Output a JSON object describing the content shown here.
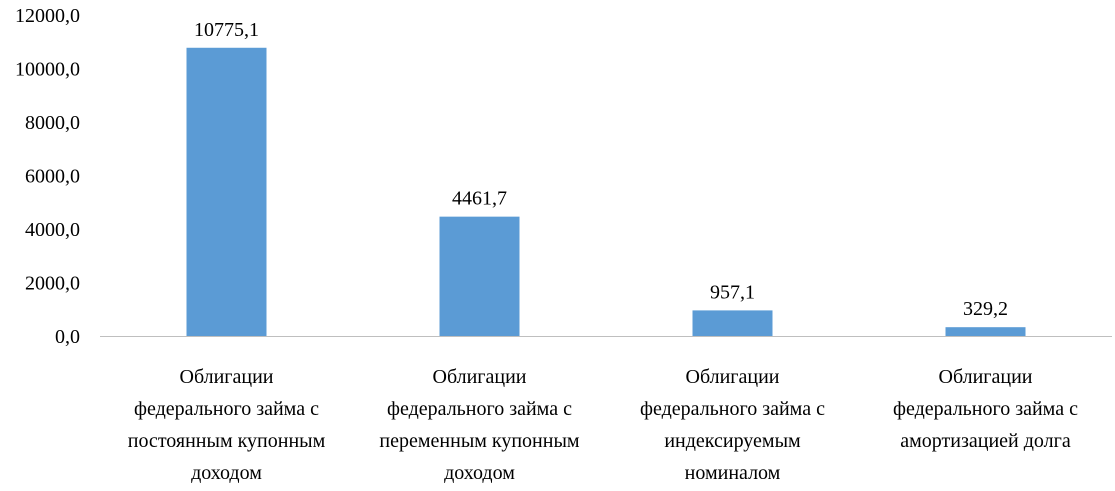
{
  "chart_data": {
    "type": "bar",
    "categories": [
      [
        "Облигации",
        "федерального займа с",
        "постоянным купонным",
        "доходом"
      ],
      [
        "Облигации",
        "федерального займа с",
        "переменным купонным",
        "доходом"
      ],
      [
        "Облигации",
        "федерального займа с",
        "индексируемым",
        "номиналом"
      ],
      [
        "Облигации",
        "федерального займа с",
        "амортизацией долга"
      ]
    ],
    "values": [
      10775.1,
      4461.7,
      957.1,
      329.2
    ],
    "data_labels": [
      "10775,1",
      "4461,7",
      "957,1",
      "329,2"
    ],
    "ylim": [
      0,
      12000
    ],
    "yticks": [
      0,
      2000,
      4000,
      6000,
      8000,
      10000,
      12000
    ],
    "ytick_labels": [
      "0,0",
      "2000,0",
      "4000,0",
      "6000,0",
      "8000,0",
      "10000,0",
      "12000,0"
    ],
    "grid": false,
    "legend": "none",
    "colors": {
      "bar": "#5b9bd5",
      "axis": "#bfbfbf"
    }
  }
}
